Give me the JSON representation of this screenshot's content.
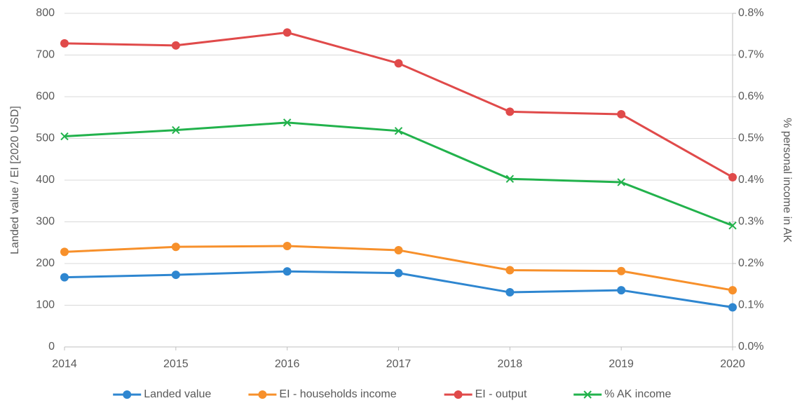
{
  "chart_data": {
    "type": "line",
    "x": [
      2014,
      2015,
      2016,
      2017,
      2018,
      2019,
      2020
    ],
    "xlim": [
      2014,
      2020
    ],
    "xticks": [
      2014,
      2015,
      2016,
      2017,
      2018,
      2019,
      2020
    ],
    "ylabel": "Landed value / EI [2020 USD]",
    "y2label": "% personal income in AK",
    "ylim": [
      0,
      800
    ],
    "yticks": [
      0,
      100,
      200,
      300,
      400,
      500,
      600,
      700,
      800
    ],
    "y2lim": [
      0,
      0.8
    ],
    "y2ticks": [
      {
        "value": 0,
        "label": "0.0%"
      },
      {
        "value": 0.1,
        "label": "0.1%"
      },
      {
        "value": 0.2,
        "label": "0.2%"
      },
      {
        "value": 0.3,
        "label": "0.3%"
      },
      {
        "value": 0.4,
        "label": "0.4%"
      },
      {
        "value": 0.5,
        "label": "0.5%"
      },
      {
        "value": 0.6,
        "label": "0.6%"
      },
      {
        "value": 0.7,
        "label": "0.7%"
      },
      {
        "value": 0.8,
        "label": "0.8%"
      }
    ],
    "grid": true,
    "legend": "bottom",
    "series": [
      {
        "name": "Landed value",
        "color": "#2e86d0",
        "marker": "circle",
        "values": [
          167,
          173,
          181,
          177,
          131,
          136,
          95
        ]
      },
      {
        "name": "EI - households income",
        "color": "#f7902b",
        "marker": "circle",
        "values": [
          228,
          240,
          242,
          232,
          184,
          182,
          136
        ]
      },
      {
        "name": "EI - output",
        "color": "#e04a4a",
        "marker": "circle",
        "values": [
          728,
          723,
          754,
          680,
          564,
          558,
          407
        ]
      },
      {
        "name": "% AK income",
        "color": "#22b24c",
        "marker": "x",
        "axis": "y2",
        "values": [
          0.505,
          0.52,
          0.538,
          0.518,
          0.403,
          0.395,
          0.291
        ]
      }
    ]
  }
}
